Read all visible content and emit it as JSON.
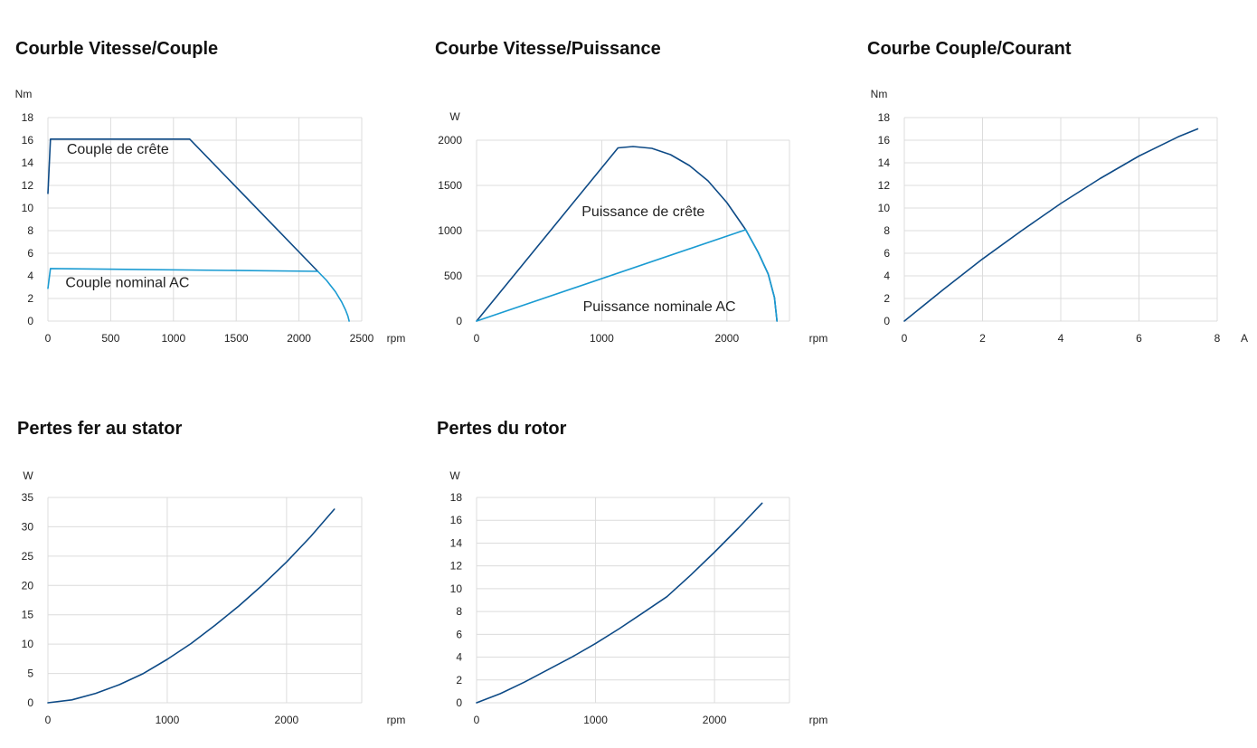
{
  "chart_data": [
    {
      "id": "c1",
      "type": "line",
      "title": "Courble Vitesse/Couple",
      "ylabel": "Nm",
      "xlabel": "rpm",
      "xlim": [
        0,
        2500
      ],
      "ylim": [
        0,
        18
      ],
      "xticks": [
        "0",
        "500",
        "1000",
        "1500",
        "2000",
        "2500"
      ],
      "yticks": [
        "0",
        "2",
        "4",
        "6",
        "8",
        "10",
        "12",
        "14",
        "16",
        "18"
      ],
      "grid": true,
      "annotations": [
        {
          "text": "Couple de crête",
          "x": 150,
          "y": 14.8
        },
        {
          "text": "Couple nominal AC",
          "x": 140,
          "y": 3.0
        }
      ],
      "series": [
        {
          "color": "#0d4a86",
          "x": [
            0,
            20,
            1130,
            2150
          ],
          "y": [
            11.3,
            16.1,
            16.1,
            4.4
          ]
        },
        {
          "color": "#1a9bd2",
          "x": [
            0,
            20,
            2150
          ],
          "y": [
            2.9,
            4.65,
            4.4
          ]
        },
        {
          "color": "#1a9bd2",
          "x": [
            2150,
            2220,
            2290,
            2340,
            2370,
            2390,
            2400
          ],
          "y": [
            4.4,
            3.6,
            2.6,
            1.7,
            1.0,
            0.45,
            0
          ]
        }
      ]
    },
    {
      "id": "c2",
      "type": "line",
      "title": "Courbe Vitesse/Puissance",
      "ylabel": "W",
      "xlabel": "rpm",
      "xlim": [
        0,
        2500
      ],
      "ylim": [
        0,
        2000
      ],
      "xticks": [
        "0",
        "1000",
        "2000"
      ],
      "xtick_values": [
        0,
        1000,
        2000
      ],
      "yticks": [
        "0",
        "500",
        "1000",
        "1500",
        "2000"
      ],
      "grid": true,
      "annotations": [
        {
          "text": "Puissance de crête",
          "x": 840,
          "y": 1160
        },
        {
          "text": "Puissance nominale AC",
          "x": 850,
          "y": 110
        }
      ],
      "series": [
        {
          "color": "#0d4a86",
          "x": [
            0,
            1130,
            1250,
            1400,
            1550,
            1700,
            1850,
            2000,
            2150,
            2250,
            2330,
            2380,
            2400
          ],
          "y": [
            0,
            1915,
            1930,
            1910,
            1840,
            1720,
            1550,
            1310,
            1010,
            760,
            520,
            260,
            0
          ]
        },
        {
          "color": "#1a9bd2",
          "x": [
            0,
            2150
          ],
          "y": [
            0,
            1010
          ]
        },
        {
          "color": "#1a9bd2",
          "x": [
            2150,
            2250,
            2330,
            2380,
            2400
          ],
          "y": [
            1010,
            760,
            520,
            260,
            0
          ]
        }
      ]
    },
    {
      "id": "c3",
      "type": "line",
      "title": "Courbe Couple/Courant",
      "ylabel": "Nm",
      "xlabel": "A",
      "xlim": [
        0,
        8
      ],
      "ylim": [
        0,
        18
      ],
      "xticks": [
        "0",
        "2",
        "4",
        "6",
        "8"
      ],
      "yticks": [
        "0",
        "2",
        "4",
        "6",
        "8",
        "10",
        "12",
        "14",
        "16",
        "18"
      ],
      "grid": true,
      "series": [
        {
          "color": "#0d4a86",
          "x": [
            0,
            1,
            2,
            3,
            4,
            5,
            6,
            7,
            7.5
          ],
          "y": [
            0,
            2.8,
            5.5,
            8.0,
            10.4,
            12.6,
            14.6,
            16.3,
            17.0
          ]
        }
      ]
    },
    {
      "id": "c4",
      "type": "line",
      "title": "Pertes fer au stator",
      "ylabel": "W",
      "xlabel": "rpm",
      "xlim": [
        0,
        2630
      ],
      "ylim": [
        0,
        35
      ],
      "xticks": [
        "0",
        "1000",
        "2000"
      ],
      "xtick_values": [
        0,
        1000,
        2000
      ],
      "yticks": [
        "0",
        "5",
        "10",
        "15",
        "20",
        "25",
        "30",
        "35"
      ],
      "grid": true,
      "series": [
        {
          "color": "#0d4a86",
          "x": [
            0,
            200,
            400,
            600,
            800,
            1000,
            1200,
            1400,
            1600,
            1800,
            2000,
            2200,
            2400
          ],
          "y": [
            0,
            0.5,
            1.6,
            3.1,
            5.0,
            7.4,
            10.1,
            13.2,
            16.5,
            20.1,
            24.0,
            28.3,
            33.0
          ]
        }
      ]
    },
    {
      "id": "c5",
      "type": "line",
      "title": "Pertes du rotor",
      "ylabel": "W",
      "xlabel": "rpm",
      "xlim": [
        0,
        2630
      ],
      "ylim": [
        0,
        18
      ],
      "xticks": [
        "0",
        "1000",
        "2000"
      ],
      "xtick_values": [
        0,
        1000,
        2000
      ],
      "yticks": [
        "0",
        "2",
        "4",
        "6",
        "8",
        "10",
        "12",
        "14",
        "16",
        "18"
      ],
      "grid": true,
      "series": [
        {
          "color": "#0d4a86",
          "x": [
            0,
            200,
            400,
            600,
            800,
            1000,
            1200,
            1400,
            1600,
            1800,
            2000,
            2200,
            2400
          ],
          "y": [
            0,
            0.8,
            1.8,
            2.9,
            4.0,
            5.2,
            6.5,
            7.9,
            9.3,
            11.2,
            13.2,
            15.3,
            17.5
          ]
        }
      ]
    }
  ]
}
